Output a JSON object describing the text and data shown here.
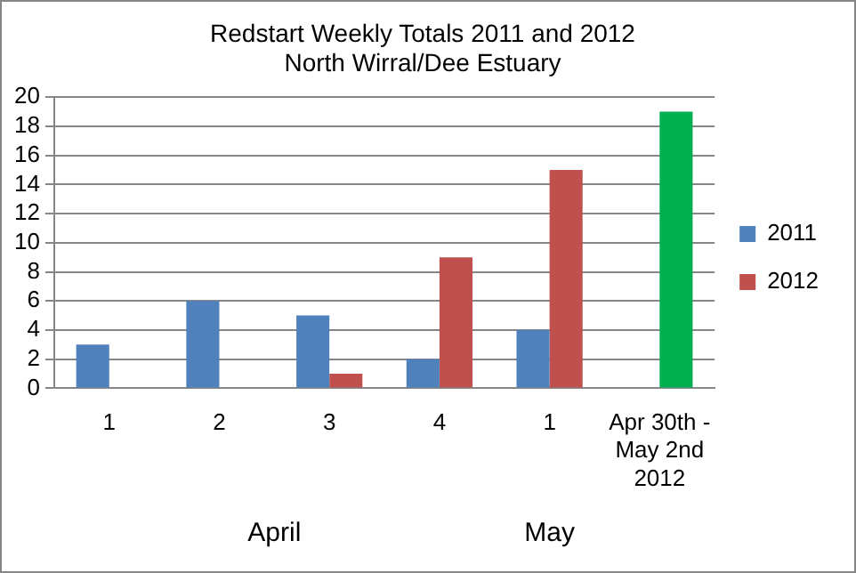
{
  "chart_data": {
    "type": "bar",
    "title": "Redstart Weekly Totals 2011 and 2012",
    "subtitle": "North Wirral/Dee Estuary",
    "categories": [
      "1",
      "2",
      "3",
      "4",
      "1",
      "Apr 30th - May 2nd 2012"
    ],
    "series": [
      {
        "name": "2011",
        "color": "#4f81bd",
        "values": [
          3,
          6,
          5,
          2,
          4,
          null
        ]
      },
      {
        "name": "2012",
        "color": "#c0504d",
        "colors": [
          "#c0504d",
          "#c0504d",
          "#c0504d",
          "#c0504d",
          "#c0504d",
          "#00b050"
        ],
        "values": [
          null,
          null,
          1,
          9,
          15,
          19
        ]
      }
    ],
    "annotations": [
      "April",
      "May"
    ],
    "ylim": [
      0,
      20
    ],
    "yticks": [
      0,
      2,
      4,
      6,
      8,
      10,
      12,
      14,
      16,
      18,
      20
    ],
    "grid": "y",
    "legend": "right"
  }
}
